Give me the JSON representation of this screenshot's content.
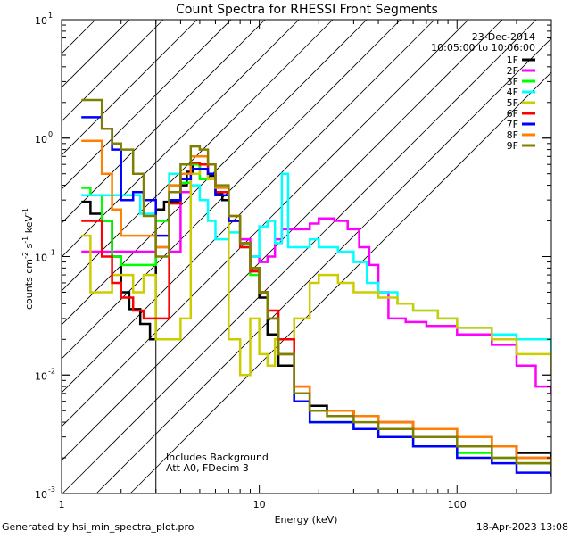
{
  "chart_data": {
    "type": "line",
    "title": "Count Spectra for RHESSI Front Segments",
    "xlabel": "Energy (keV)",
    "ylabel_base": "counts cm",
    "ylabel_sup1": "-2",
    "ylabel_mid1": " s",
    "ylabel_sup2": "-1",
    "ylabel_mid2": " keV",
    "ylabel_sup3": "-1",
    "x_scale": "log",
    "y_scale": "log",
    "xlim": [
      1,
      300
    ],
    "ylim": [
      0.001,
      10
    ],
    "x_ticks": [
      {
        "value": 1,
        "label": "1"
      },
      {
        "value": 10,
        "label": "10"
      },
      {
        "value": 100,
        "label": "100"
      }
    ],
    "y_ticks": [
      {
        "value": 10,
        "mant": "10",
        "exp": "1"
      },
      {
        "value": 1,
        "mant": "10",
        "exp": "0"
      },
      {
        "value": 0.1,
        "mant": "10",
        "exp": "-1"
      },
      {
        "value": 0.01,
        "mant": "10",
        "exp": "-2"
      },
      {
        "value": 0.001,
        "mant": "10",
        "exp": "-3"
      }
    ],
    "hatched_region_kev": [
      1,
      3
    ],
    "date": "23-Dec-2014",
    "time_range": "10:05:00 to 10:06:00",
    "annotation_lines": [
      "Includes Background",
      "Att A0, FDecim 3"
    ],
    "footer_left": "Generated by hsi_min_spectra_plot.pro",
    "footer_right": "18-Apr-2023 13:08",
    "legend_position": "top-right",
    "series": [
      {
        "name": "1F",
        "color": "#000000",
        "values": [
          [
            1.26,
            0.29
          ],
          [
            1.4,
            0.23
          ],
          [
            1.6,
            0.2
          ],
          [
            1.8,
            0.1
          ],
          [
            2.0,
            0.05
          ],
          [
            2.2,
            0.036
          ],
          [
            2.5,
            0.027
          ],
          [
            2.8,
            0.02
          ],
          [
            3.0,
            0.25
          ],
          [
            3.3,
            0.29
          ],
          [
            3.6,
            0.29
          ],
          [
            4.0,
            0.4
          ],
          [
            4.3,
            0.52
          ],
          [
            4.6,
            0.6
          ],
          [
            5.0,
            0.55
          ],
          [
            5.5,
            0.48
          ],
          [
            6.0,
            0.34
          ],
          [
            6.5,
            0.3
          ],
          [
            7.0,
            0.2
          ],
          [
            8.0,
            0.13
          ],
          [
            9.0,
            0.08
          ],
          [
            10.0,
            0.045
          ],
          [
            11.0,
            0.022
          ],
          [
            12.5,
            0.012
          ],
          [
            15.0,
            0.007
          ],
          [
            18.0,
            0.0055
          ],
          [
            22.0,
            0.005
          ],
          [
            30.0,
            0.0045
          ],
          [
            40.0,
            0.004
          ],
          [
            60.0,
            0.0035
          ],
          [
            100.0,
            0.003
          ],
          [
            150.0,
            0.0025
          ],
          [
            200.0,
            0.0022
          ],
          [
            300.0,
            0.002
          ]
        ]
      },
      {
        "name": "2F",
        "color": "#ff00ff",
        "values": [
          [
            1.26,
            0.11
          ],
          [
            1.5,
            0.11
          ],
          [
            1.8,
            0.11
          ],
          [
            2.0,
            0.11
          ],
          [
            2.3,
            0.11
          ],
          [
            2.6,
            0.11
          ],
          [
            3.0,
            0.12
          ],
          [
            3.5,
            0.11
          ],
          [
            4.0,
            0.35
          ],
          [
            4.5,
            0.55
          ],
          [
            5.0,
            0.6
          ],
          [
            5.5,
            0.5
          ],
          [
            6.0,
            0.35
          ],
          [
            7.0,
            0.2
          ],
          [
            8.0,
            0.14
          ],
          [
            9.0,
            0.1
          ],
          [
            10.0,
            0.09
          ],
          [
            11.0,
            0.1
          ],
          [
            12.0,
            0.14
          ],
          [
            13.0,
            0.17
          ],
          [
            15.0,
            0.17
          ],
          [
            18.0,
            0.19
          ],
          [
            20.0,
            0.21
          ],
          [
            24.0,
            0.2
          ],
          [
            28.0,
            0.17
          ],
          [
            32.0,
            0.12
          ],
          [
            36.0,
            0.085
          ],
          [
            40.0,
            0.05
          ],
          [
            45.0,
            0.03
          ],
          [
            55.0,
            0.028
          ],
          [
            70.0,
            0.026
          ],
          [
            100.0,
            0.022
          ],
          [
            150.0,
            0.018
          ],
          [
            200.0,
            0.012
          ],
          [
            250.0,
            0.008
          ],
          [
            300.0,
            0.007
          ]
        ]
      },
      {
        "name": "3F",
        "color": "#00ff00",
        "values": [
          [
            1.26,
            0.38
          ],
          [
            1.4,
            0.33
          ],
          [
            1.6,
            0.2
          ],
          [
            1.8,
            0.1
          ],
          [
            2.0,
            0.085
          ],
          [
            2.3,
            0.085
          ],
          [
            2.6,
            0.085
          ],
          [
            3.0,
            0.2
          ],
          [
            3.5,
            0.4
          ],
          [
            4.0,
            0.42
          ],
          [
            4.5,
            0.6
          ],
          [
            5.0,
            0.45
          ],
          [
            5.5,
            0.45
          ],
          [
            6.0,
            0.35
          ],
          [
            7.0,
            0.2
          ],
          [
            8.0,
            0.12
          ],
          [
            9.0,
            0.07
          ],
          [
            10.0,
            0.05
          ],
          [
            11.0,
            0.03
          ],
          [
            12.5,
            0.015
          ],
          [
            15.0,
            0.006
          ],
          [
            18.0,
            0.004
          ],
          [
            22.0,
            0.004
          ],
          [
            30.0,
            0.0035
          ],
          [
            40.0,
            0.003
          ],
          [
            60.0,
            0.0025
          ],
          [
            100.0,
            0.0022
          ],
          [
            150.0,
            0.002
          ],
          [
            200.0,
            0.0018
          ],
          [
            300.0,
            0.0015
          ]
        ]
      },
      {
        "name": "4F",
        "color": "#00ffff",
        "values": [
          [
            1.26,
            0.33
          ],
          [
            1.5,
            0.33
          ],
          [
            2.0,
            0.33
          ],
          [
            2.5,
            0.23
          ],
          [
            3.0,
            0.12
          ],
          [
            3.5,
            0.5
          ],
          [
            4.0,
            0.5
          ],
          [
            4.5,
            0.4
          ],
          [
            5.0,
            0.3
          ],
          [
            5.5,
            0.2
          ],
          [
            6.0,
            0.14
          ],
          [
            7.0,
            0.16
          ],
          [
            8.0,
            0.12
          ],
          [
            9.0,
            0.1
          ],
          [
            10.0,
            0.18
          ],
          [
            11.0,
            0.2
          ],
          [
            12.0,
            0.13
          ],
          [
            13.0,
            0.5
          ],
          [
            14.0,
            0.12
          ],
          [
            16.0,
            0.12
          ],
          [
            18.0,
            0.14
          ],
          [
            20.0,
            0.12
          ],
          [
            25.0,
            0.11
          ],
          [
            30.0,
            0.09
          ],
          [
            35.0,
            0.06
          ],
          [
            40.0,
            0.05
          ],
          [
            50.0,
            0.04
          ],
          [
            60.0,
            0.035
          ],
          [
            80.0,
            0.03
          ],
          [
            100.0,
            0.025
          ],
          [
            150.0,
            0.022
          ],
          [
            200.0,
            0.02
          ],
          [
            300.0,
            0.015
          ]
        ]
      },
      {
        "name": "5F",
        "color": "#cccc00",
        "values": [
          [
            1.26,
            0.15
          ],
          [
            1.4,
            0.05
          ],
          [
            1.6,
            0.05
          ],
          [
            1.8,
            0.07
          ],
          [
            2.0,
            0.07
          ],
          [
            2.3,
            0.05
          ],
          [
            2.6,
            0.07
          ],
          [
            3.0,
            0.02
          ],
          [
            3.5,
            0.02
          ],
          [
            4.0,
            0.03
          ],
          [
            4.5,
            0.5
          ],
          [
            5.0,
            0.55
          ],
          [
            5.5,
            0.45
          ],
          [
            6.0,
            0.35
          ],
          [
            7.0,
            0.02
          ],
          [
            8.0,
            0.01
          ],
          [
            9.0,
            0.03
          ],
          [
            10.0,
            0.015
          ],
          [
            11.0,
            0.012
          ],
          [
            12.0,
            0.02
          ],
          [
            15.0,
            0.03
          ],
          [
            18.0,
            0.06
          ],
          [
            20.0,
            0.07
          ],
          [
            25.0,
            0.06
          ],
          [
            30.0,
            0.05
          ],
          [
            40.0,
            0.045
          ],
          [
            50.0,
            0.04
          ],
          [
            60.0,
            0.035
          ],
          [
            80.0,
            0.03
          ],
          [
            100.0,
            0.025
          ],
          [
            150.0,
            0.02
          ],
          [
            200.0,
            0.015
          ],
          [
            300.0,
            0.01
          ]
        ]
      },
      {
        "name": "6F",
        "color": "#ff0000",
        "values": [
          [
            1.26,
            0.2
          ],
          [
            1.4,
            0.2
          ],
          [
            1.6,
            0.1
          ],
          [
            1.8,
            0.06
          ],
          [
            2.0,
            0.045
          ],
          [
            2.3,
            0.035
          ],
          [
            2.6,
            0.03
          ],
          [
            3.0,
            0.03
          ],
          [
            3.5,
            0.28
          ],
          [
            4.0,
            0.5
          ],
          [
            4.5,
            0.62
          ],
          [
            5.0,
            0.6
          ],
          [
            5.5,
            0.5
          ],
          [
            6.0,
            0.35
          ],
          [
            7.0,
            0.2
          ],
          [
            8.0,
            0.12
          ],
          [
            9.0,
            0.075
          ],
          [
            10.0,
            0.05
          ],
          [
            11.0,
            0.035
          ],
          [
            12.5,
            0.02
          ],
          [
            15.0,
            0.008
          ],
          [
            18.0,
            0.005
          ],
          [
            22.0,
            0.005
          ],
          [
            30.0,
            0.0045
          ],
          [
            40.0,
            0.004
          ],
          [
            60.0,
            0.0035
          ],
          [
            100.0,
            0.003
          ],
          [
            150.0,
            0.0025
          ],
          [
            200.0,
            0.002
          ],
          [
            300.0,
            0.0018
          ]
        ]
      },
      {
        "name": "7F",
        "color": "#0000ff",
        "values": [
          [
            1.26,
            1.5
          ],
          [
            1.4,
            1.5
          ],
          [
            1.6,
            1.2
          ],
          [
            1.8,
            0.8
          ],
          [
            2.0,
            0.3
          ],
          [
            2.3,
            0.35
          ],
          [
            2.6,
            0.3
          ],
          [
            3.0,
            0.15
          ],
          [
            3.5,
            0.3
          ],
          [
            4.0,
            0.45
          ],
          [
            4.5,
            0.55
          ],
          [
            5.0,
            0.55
          ],
          [
            5.5,
            0.5
          ],
          [
            6.0,
            0.33
          ],
          [
            7.0,
            0.2
          ],
          [
            8.0,
            0.13
          ],
          [
            9.0,
            0.08
          ],
          [
            10.0,
            0.05
          ],
          [
            11.0,
            0.03
          ],
          [
            12.5,
            0.015
          ],
          [
            15.0,
            0.006
          ],
          [
            18.0,
            0.004
          ],
          [
            22.0,
            0.004
          ],
          [
            30.0,
            0.0035
          ],
          [
            40.0,
            0.003
          ],
          [
            60.0,
            0.0025
          ],
          [
            100.0,
            0.002
          ],
          [
            150.0,
            0.0018
          ],
          [
            200.0,
            0.0015
          ],
          [
            300.0,
            0.0014
          ]
        ]
      },
      {
        "name": "8F",
        "color": "#ff8000",
        "values": [
          [
            1.26,
            0.95
          ],
          [
            1.4,
            0.95
          ],
          [
            1.6,
            0.5
          ],
          [
            1.8,
            0.25
          ],
          [
            2.0,
            0.15
          ],
          [
            2.3,
            0.15
          ],
          [
            2.6,
            0.15
          ],
          [
            3.0,
            0.12
          ],
          [
            3.5,
            0.4
          ],
          [
            4.0,
            0.5
          ],
          [
            4.5,
            0.7
          ],
          [
            5.0,
            0.7
          ],
          [
            5.5,
            0.6
          ],
          [
            6.0,
            0.38
          ],
          [
            7.0,
            0.22
          ],
          [
            8.0,
            0.13
          ],
          [
            9.0,
            0.08
          ],
          [
            10.0,
            0.05
          ],
          [
            11.0,
            0.03
          ],
          [
            12.5,
            0.015
          ],
          [
            15.0,
            0.008
          ],
          [
            18.0,
            0.005
          ],
          [
            22.0,
            0.005
          ],
          [
            30.0,
            0.0045
          ],
          [
            40.0,
            0.004
          ],
          [
            60.0,
            0.0035
          ],
          [
            100.0,
            0.003
          ],
          [
            150.0,
            0.0025
          ],
          [
            200.0,
            0.002
          ],
          [
            300.0,
            0.0018
          ]
        ]
      },
      {
        "name": "9F",
        "color": "#808000",
        "values": [
          [
            1.26,
            2.1
          ],
          [
            1.4,
            2.1
          ],
          [
            1.6,
            1.2
          ],
          [
            1.8,
            0.9
          ],
          [
            2.0,
            0.8
          ],
          [
            2.3,
            0.5
          ],
          [
            2.6,
            0.22
          ],
          [
            3.0,
            0.1
          ],
          [
            3.5,
            0.35
          ],
          [
            4.0,
            0.6
          ],
          [
            4.5,
            0.85
          ],
          [
            5.0,
            0.8
          ],
          [
            5.5,
            0.6
          ],
          [
            6.0,
            0.4
          ],
          [
            7.0,
            0.22
          ],
          [
            8.0,
            0.13
          ],
          [
            9.0,
            0.08
          ],
          [
            10.0,
            0.05
          ],
          [
            11.0,
            0.03
          ],
          [
            12.5,
            0.015
          ],
          [
            15.0,
            0.007
          ],
          [
            18.0,
            0.005
          ],
          [
            22.0,
            0.0045
          ],
          [
            30.0,
            0.004
          ],
          [
            40.0,
            0.0035
          ],
          [
            60.0,
            0.003
          ],
          [
            100.0,
            0.0025
          ],
          [
            150.0,
            0.002
          ],
          [
            200.0,
            0.0018
          ],
          [
            300.0,
            0.0015
          ]
        ]
      }
    ]
  }
}
